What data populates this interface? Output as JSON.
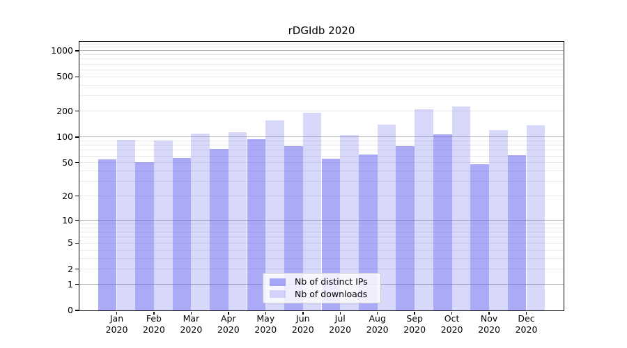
{
  "title": "rDGIdb 2020",
  "chart_data": {
    "type": "bar",
    "title": "rDGIdb 2020",
    "categories": [
      "Jan 2020",
      "Feb 2020",
      "Mar 2020",
      "Apr 2020",
      "May 2020",
      "Jun 2020",
      "Jul 2020",
      "Aug 2020",
      "Sep 2020",
      "Oct 2020",
      "Nov 2020",
      "Dec 2020"
    ],
    "x_tick_line1": [
      "Jan",
      "Feb",
      "Mar",
      "Apr",
      "May",
      "Jun",
      "Jul",
      "Aug",
      "Sep",
      "Oct",
      "Nov",
      "Dec"
    ],
    "x_tick_line2": "2020",
    "series": [
      {
        "name": "Nb of distinct IPs",
        "values": [
          55,
          51,
          57,
          72,
          94,
          78,
          56,
          62,
          78,
          108,
          48,
          61
        ],
        "color": "rgba(100,100,240,0.55)"
      },
      {
        "name": "Nb of downloads",
        "values": [
          92,
          90,
          110,
          114,
          157,
          190,
          105,
          140,
          210,
          226,
          120,
          138
        ],
        "color": "rgba(100,100,240,0.25)"
      }
    ],
    "y_scale": "log10(value+1)",
    "y_ticks": [
      0,
      1,
      2,
      5,
      10,
      20,
      50,
      100,
      200,
      500,
      1000
    ],
    "y_top": 1270,
    "grid": {
      "major_at": [
        1,
        10,
        100,
        1000
      ],
      "major_color": "#b3b3b3",
      "minor_color": "#e9e9e9"
    },
    "legend_position": "lower center",
    "spine_color": "#000000"
  }
}
